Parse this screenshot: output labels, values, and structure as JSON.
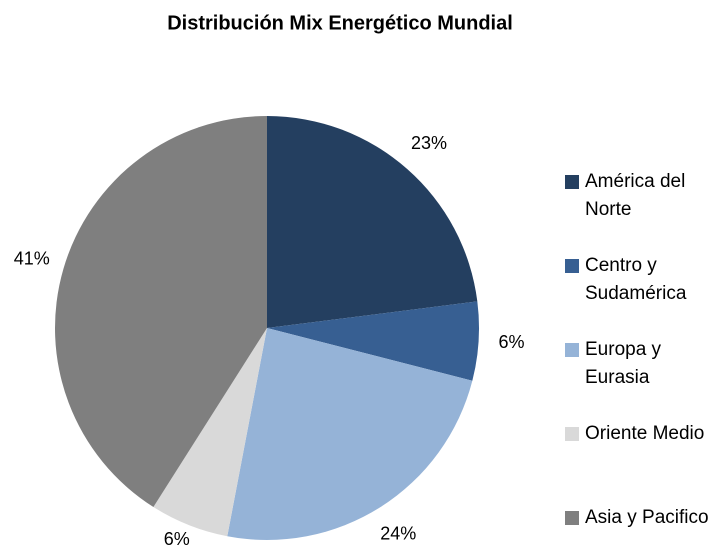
{
  "chart_data": {
    "type": "pie",
    "title": "Distribución Mix Energético Mundial",
    "categories": [
      "América del Norte",
      "Centro y Sudamérica",
      "Europa y Eurasia",
      "Oriente Medio",
      "Asia y Pacifico"
    ],
    "values": [
      23,
      6,
      24,
      6,
      41
    ],
    "value_labels": [
      "23%",
      "6%",
      "24%",
      "6%",
      "41%"
    ],
    "colors": [
      "#243f60",
      "#375f92",
      "#95b3d7",
      "#d9d9d9",
      "#7f7f7f"
    ],
    "legend": "right"
  }
}
